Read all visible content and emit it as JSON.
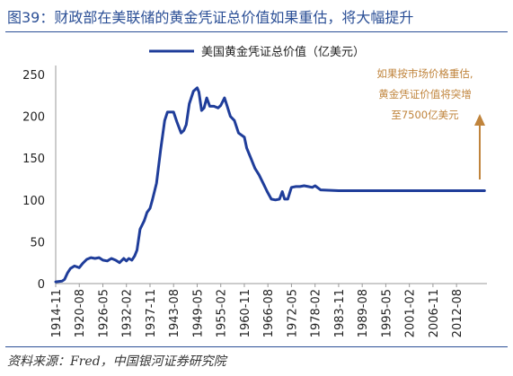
{
  "title": "图39：财政部在美联储的黄金凭证总价值如果重估，将大幅提升",
  "source": "资料来源：Fred，中国银河证券研究院",
  "colors": {
    "title": "#2b4f96",
    "series": "#1f3d9a",
    "annotation": "#c0843c"
  },
  "chart_data": {
    "type": "line",
    "legend": "top-center",
    "grid": false,
    "ylim": [
      0,
      250
    ],
    "yticks": [
      0,
      50,
      100,
      150,
      200,
      250
    ],
    "xlim": [
      "1914-11",
      "2020-01"
    ],
    "xticks": [
      "1914-11",
      "1920-08",
      "1926-05",
      "1932-02",
      "1937-11",
      "1943-08",
      "1949-05",
      "1955-02",
      "1960-11",
      "1966-08",
      "1972-05",
      "1978-02",
      "1983-11",
      "1989-08",
      "1995-05",
      "2001-02",
      "2006-11",
      "2012-08"
    ],
    "series": [
      {
        "name": "美国黄金凭证总价值（亿美元）",
        "points": [
          [
            "1914-11",
            2
          ],
          [
            "1916-06",
            3
          ],
          [
            "1917-01",
            5
          ],
          [
            "1917-10",
            13
          ],
          [
            "1918-06",
            18
          ],
          [
            "1919-06",
            21
          ],
          [
            "1920-08",
            19
          ],
          [
            "1921-06",
            24
          ],
          [
            "1922-06",
            29
          ],
          [
            "1923-06",
            31
          ],
          [
            "1924-06",
            30
          ],
          [
            "1925-06",
            31
          ],
          [
            "1926-05",
            28
          ],
          [
            "1927-06",
            27
          ],
          [
            "1928-06",
            30
          ],
          [
            "1929-06",
            28
          ],
          [
            "1930-06",
            25
          ],
          [
            "1931-06",
            30
          ],
          [
            "1932-02",
            27
          ],
          [
            "1932-09",
            30
          ],
          [
            "1933-06",
            28
          ],
          [
            "1934-02",
            33
          ],
          [
            "1934-09",
            40
          ],
          [
            "1935-06",
            65
          ],
          [
            "1936-06",
            75
          ],
          [
            "1937-02",
            85
          ],
          [
            "1937-11",
            90
          ],
          [
            "1938-06",
            100
          ],
          [
            "1939-06",
            120
          ],
          [
            "1940-06",
            160
          ],
          [
            "1941-06",
            195
          ],
          [
            "1942-02",
            205
          ],
          [
            "1943-08",
            205
          ],
          [
            "1944-06",
            193
          ],
          [
            "1945-06",
            180
          ],
          [
            "1946-02",
            183
          ],
          [
            "1946-09",
            190
          ],
          [
            "1947-06",
            215
          ],
          [
            "1948-06",
            230
          ],
          [
            "1949-05",
            234
          ],
          [
            "1949-10",
            229
          ],
          [
            "1950-06",
            207
          ],
          [
            "1951-01",
            210
          ],
          [
            "1951-09",
            222
          ],
          [
            "1952-06",
            212
          ],
          [
            "1953-06",
            212
          ],
          [
            "1954-06",
            210
          ],
          [
            "1955-02",
            213
          ],
          [
            "1956-01",
            222
          ],
          [
            "1956-09",
            212
          ],
          [
            "1957-06",
            200
          ],
          [
            "1958-06",
            195
          ],
          [
            "1959-06",
            180
          ],
          [
            "1960-11",
            175
          ],
          [
            "1961-06",
            162
          ],
          [
            "1962-06",
            150
          ],
          [
            "1963-06",
            138
          ],
          [
            "1964-06",
            130
          ],
          [
            "1965-06",
            120
          ],
          [
            "1966-06",
            110
          ],
          [
            "1967-06",
            101
          ],
          [
            "1968-06",
            100
          ],
          [
            "1969-06",
            101
          ],
          [
            "1970-02",
            110
          ],
          [
            "1970-09",
            101
          ],
          [
            "1971-06",
            101
          ],
          [
            "1972-01",
            110
          ],
          [
            "1972-05",
            115
          ],
          [
            "1973-06",
            116
          ],
          [
            "1974-06",
            116
          ],
          [
            "1975-06",
            117
          ],
          [
            "1976-06",
            116
          ],
          [
            "1977-06",
            115
          ],
          [
            "1978-02",
            117
          ],
          [
            "1979-06",
            112
          ],
          [
            "1983-11",
            111
          ],
          [
            "1989-08",
            111
          ],
          [
            "1995-05",
            111
          ],
          [
            "2001-02",
            111
          ],
          [
            "2006-11",
            111
          ],
          [
            "2012-08",
            111
          ],
          [
            "2019-06",
            111
          ]
        ]
      }
    ],
    "annotation": {
      "lines": [
        "如果按市场价格重估,",
        "黄金凭证价值将突增",
        "至7500亿美元"
      ],
      "arrow": "up"
    }
  }
}
